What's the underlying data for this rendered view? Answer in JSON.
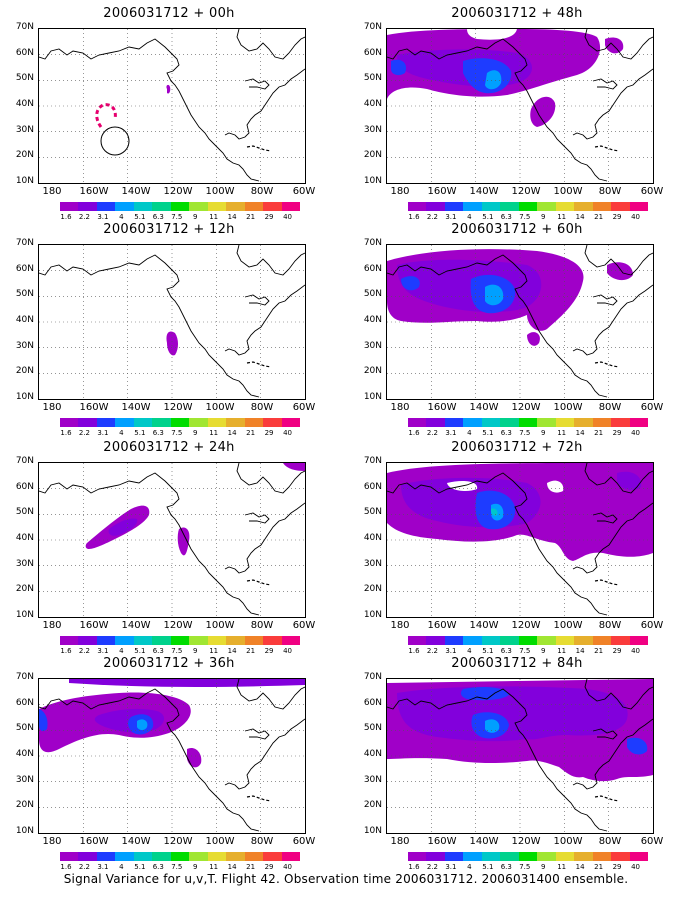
{
  "panels": [
    {
      "title": "2006031712 + 00h",
      "level": 0
    },
    {
      "title": "2006031712 + 12h",
      "level": 1
    },
    {
      "title": "2006031712 + 24h",
      "level": 2
    },
    {
      "title": "2006031712 + 36h",
      "level": 3
    },
    {
      "title": "2006031712 + 48h",
      "level": 4
    },
    {
      "title": "2006031712 + 60h",
      "level": 5
    },
    {
      "title": "2006031712 + 72h",
      "level": 6
    },
    {
      "title": "2006031712 + 84h",
      "level": 7
    }
  ],
  "lat_labels": [
    "70N",
    "60N",
    "50N",
    "40N",
    "30N",
    "20N",
    "10N"
  ],
  "lon_labels": [
    "180",
    "160W",
    "140W",
    "120W",
    "100W",
    "80W",
    "60W"
  ],
  "colorbar": {
    "colors": [
      "#a000c8",
      "#8200dc",
      "#1e3cff",
      "#00a0ff",
      "#00c8c8",
      "#00d28c",
      "#00dc00",
      "#a0e632",
      "#e6dc32",
      "#e6af2d",
      "#f08228",
      "#fa3c3c",
      "#f00082"
    ],
    "labels": [
      "1.6",
      "2.2",
      "3.1",
      "4",
      "5.1",
      "6.3",
      "7.5",
      "9",
      "11",
      "14",
      "21",
      "29",
      "40"
    ]
  },
  "footer": "Signal Variance for u,v,T. Flight 42. Observation time 2006031712. 2006031400 ensemble."
}
